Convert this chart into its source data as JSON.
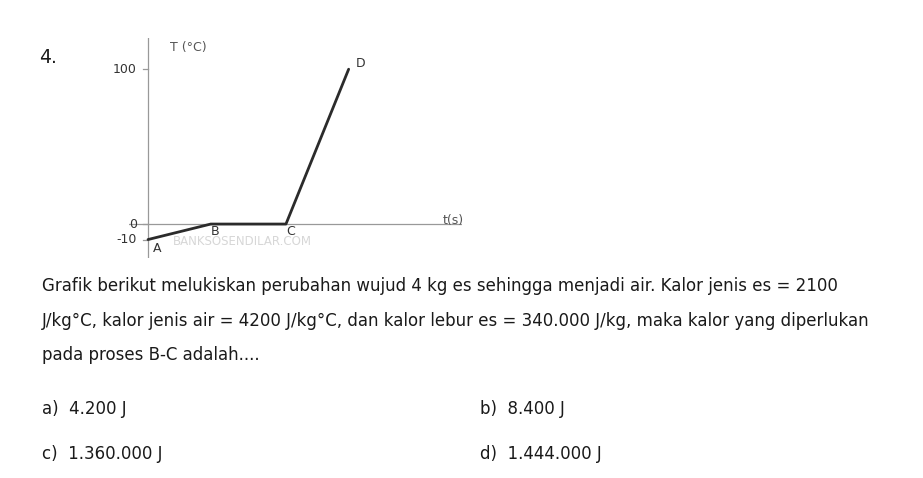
{
  "question_number": "4.",
  "graph": {
    "xlabel": "t(s)",
    "ylabel": "T (°C)",
    "yticks": [
      -10,
      0,
      100
    ],
    "ylim": [
      -22,
      120
    ],
    "xlim": [
      -0.3,
      5.0
    ],
    "points": {
      "A": [
        0.0,
        -10
      ],
      "B": [
        1.0,
        0
      ],
      "C": [
        2.2,
        0
      ],
      "D": [
        3.2,
        100
      ]
    },
    "line_color": "#2b2b2b",
    "line_width": 2.0,
    "axis_color": "#999999",
    "label_fontsize": 9,
    "point_label_fontsize": 9,
    "watermark": "BANKSOSENDILAR.COM"
  },
  "text": {
    "paragraph_lines": [
      "Grafik berikut melukiskan perubahan wujud 4 kg es sehingga menjadi air. Kalor jenis es = 2100",
      "J/kg°C, kalor jenis air = 4200 J/kg°C, dan kalor lebur es = 340.000 J/kg, maka kalor yang diperlukan",
      "pada proses B-C adalah...."
    ],
    "answers": [
      {
        "label": "a)",
        "value": "4.200 J",
        "col": 0
      },
      {
        "label": "b)",
        "value": "8.400 J",
        "col": 1
      },
      {
        "label": "c)",
        "value": "1.360.000 J",
        "col": 0
      },
      {
        "label": "d)",
        "value": "1.444.000 J",
        "col": 1
      }
    ],
    "text_color": "#1a1a1a",
    "fontsize": 12.0
  },
  "background_color": "#ffffff"
}
